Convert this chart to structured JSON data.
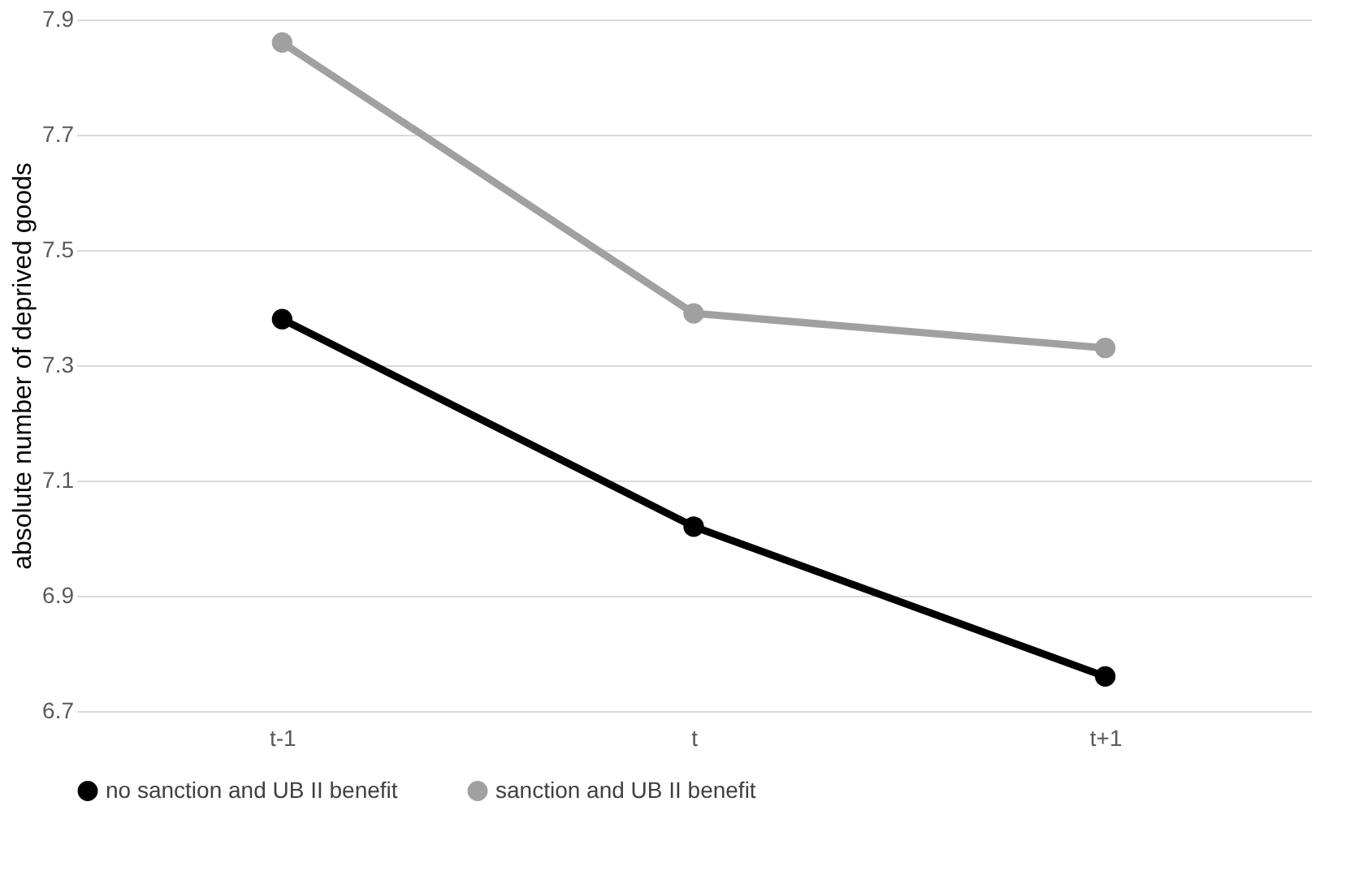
{
  "chart_data": {
    "type": "line",
    "ylabel": "absolute number of deprived goods",
    "categories": [
      "t-1",
      "t",
      "t+1"
    ],
    "series": [
      {
        "name": "no sanction and UB II benefit",
        "color": "#000000",
        "values": [
          7.38,
          7.02,
          6.76
        ]
      },
      {
        "name": "sanction and UB II benefit",
        "color": "#a0a0a0",
        "values": [
          7.86,
          7.39,
          7.33
        ]
      }
    ],
    "ylim": [
      6.7,
      7.9
    ],
    "yticks": [
      6.7,
      6.9,
      7.1,
      7.3,
      7.5,
      7.7,
      7.9
    ],
    "grid": "y",
    "legend": "bottom",
    "marker": "circle",
    "line_style": "solid"
  }
}
